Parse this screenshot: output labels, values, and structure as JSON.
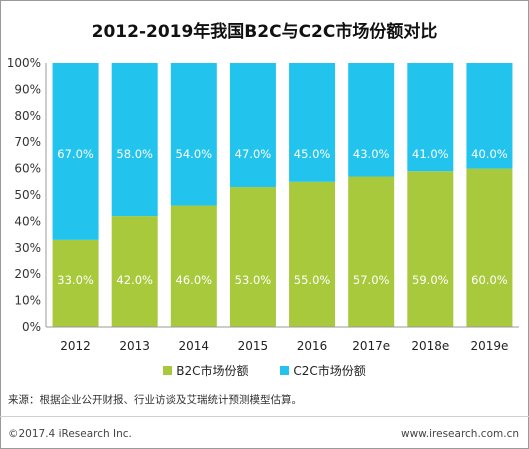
{
  "chart_data": {
    "type": "bar",
    "stacked": true,
    "title": "2012-2019年我国B2C与C2C市场份额对比",
    "categories": [
      "2012",
      "2013",
      "2014",
      "2015",
      "2016",
      "2017e",
      "2018e",
      "2019e"
    ],
    "series": [
      {
        "name": "B2C市场份额",
        "color": "#a9c93c",
        "values": [
          33.0,
          42.0,
          46.0,
          53.0,
          55.0,
          57.0,
          59.0,
          60.0
        ]
      },
      {
        "name": "C2C市场份额",
        "color": "#22c4ee",
        "values": [
          67.0,
          58.0,
          54.0,
          47.0,
          45.0,
          43.0,
          41.0,
          40.0
        ]
      }
    ],
    "yticks": [
      "0%",
      "10%",
      "20%",
      "30%",
      "40%",
      "50%",
      "60%",
      "70%",
      "80%",
      "90%",
      "100%"
    ],
    "ylim": [
      0,
      100
    ],
    "grid": false,
    "legend": "bottom"
  },
  "source": "来源：根据企业公开财报、行业访谈及艾瑞统计预测模型估算。",
  "footer": {
    "copyright": "©2017.4 iResearch Inc.",
    "website": "www.iresearch.com.cn"
  }
}
